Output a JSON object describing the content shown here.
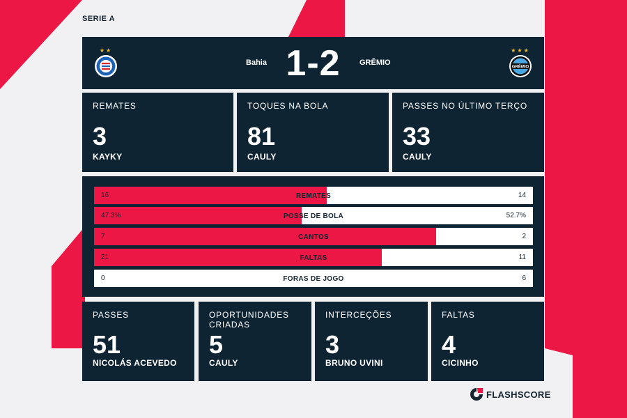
{
  "league": "SERIE A",
  "match": {
    "home_team": "Bahia",
    "away_team": "GRÊMIO",
    "score": "1-2",
    "away_crest_text": "GRÊMIO"
  },
  "player_stats_top": [
    {
      "label": "REMATES",
      "value": "3",
      "player": "KAYKY"
    },
    {
      "label": "TOQUES NA BOLA",
      "value": "81",
      "player": "CAULY"
    },
    {
      "label": "PASSES NO ÚLTIMO TERÇO",
      "value": "33",
      "player": "CAULY"
    }
  ],
  "team_stats": [
    {
      "name": "REMATES",
      "home": "16",
      "away": "14",
      "home_share": 0.53
    },
    {
      "name": "POSSE DE BOLA",
      "home": "47.3%",
      "away": "52.7%",
      "home_share": 0.473
    },
    {
      "name": "CANTOS",
      "home": "7",
      "away": "2",
      "home_share": 0.78
    },
    {
      "name": "FALTAS",
      "home": "21",
      "away": "11",
      "home_share": 0.656
    },
    {
      "name": "FORAS DE JOGO",
      "home": "0",
      "away": "6",
      "home_share": 0
    }
  ],
  "player_stats_bottom": [
    {
      "label": "PASSES",
      "value": "51",
      "player": "NICOLÁS ACEVEDO"
    },
    {
      "label": "OPORTUNIDADES CRIADAS",
      "value": "5",
      "player": "CAULY"
    },
    {
      "label": "INTERCEÇÕES",
      "value": "3",
      "player": "BRUNO UVINI"
    },
    {
      "label": "FALTAS",
      "value": "4",
      "player": "CICINHO"
    }
  ],
  "brand": "FLASHSCORE",
  "colors": {
    "accent": "#ec1745",
    "panel": "#0e2433",
    "background": "#f1f1f4"
  },
  "icons": {
    "home_crest": "bahia-crest-icon",
    "away_crest": "gremio-crest-icon",
    "brand_logo": "flashscore-logo-icon"
  }
}
